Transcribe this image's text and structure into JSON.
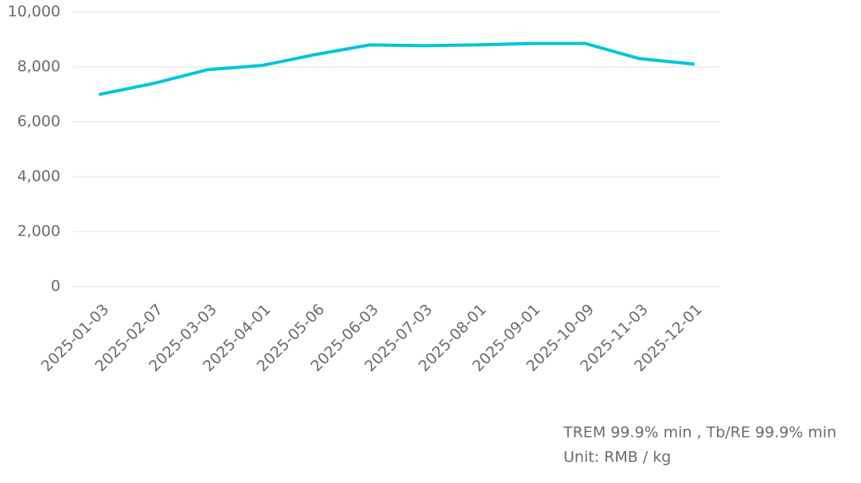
{
  "chart_data": {
    "type": "line",
    "categories": [
      "2025-01-03",
      "2025-02-07",
      "2025-03-03",
      "2025-04-01",
      "2025-05-06",
      "2025-06-03",
      "2025-07-03",
      "2025-08-01",
      "2025-09-01",
      "2025-10-09",
      "2025-11-03",
      "2025-12-01"
    ],
    "series": [
      {
        "name": "TREM 99.9% min , Tb/RE 99.9% min",
        "color": "#00c5d8",
        "values": [
          7000,
          7400,
          7900,
          8050,
          8450,
          8800,
          8770,
          8800,
          8850,
          8850,
          8300,
          8100
        ]
      }
    ],
    "notes": [
      "TREM 99.9% min , Tb/RE 99.9% min",
      "Unit: RMB / kg"
    ],
    "ylim": [
      0,
      10000
    ],
    "yticks": [
      0,
      {
        "value": 2000,
        "label": "2,000"
      },
      {
        "value": 4000,
        "label": "4,000"
      },
      {
        "value": 6000,
        "label": "6,000"
      },
      {
        "value": 8000,
        "label": "8,000"
      },
      {
        "value": 10000,
        "label": "10,000"
      }
    ],
    "grid": true
  }
}
